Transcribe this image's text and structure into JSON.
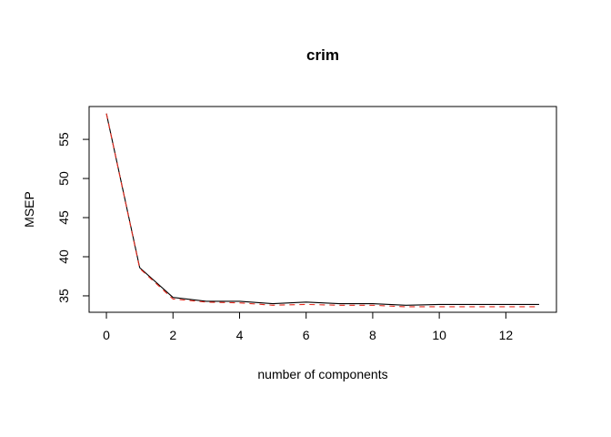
{
  "chart_data": {
    "type": "line",
    "title": "crim",
    "xlabel": "number of components",
    "ylabel": "MSEP",
    "xlim": [
      -0.52,
      13.52
    ],
    "ylim": [
      32.9,
      59.2
    ],
    "x_ticks": [
      0,
      2,
      4,
      6,
      8,
      10,
      12
    ],
    "y_ticks": [
      35,
      40,
      45,
      50,
      55
    ],
    "grid": false,
    "legend": "none",
    "x": [
      0,
      1,
      2,
      3,
      4,
      5,
      6,
      7,
      8,
      9,
      10,
      11,
      12,
      13
    ],
    "series": [
      {
        "color": "#000000",
        "line_style": "solid",
        "values": [
          58.3,
          38.6,
          34.8,
          34.3,
          34.3,
          34.0,
          34.2,
          34.0,
          34.0,
          33.8,
          33.9,
          33.9,
          33.9,
          33.9
        ]
      },
      {
        "color": "#e8291c",
        "line_style": "dashed",
        "values": [
          58.3,
          38.5,
          34.6,
          34.2,
          34.1,
          33.8,
          33.9,
          33.8,
          33.8,
          33.6,
          33.6,
          33.6,
          33.6,
          33.6
        ]
      }
    ]
  }
}
